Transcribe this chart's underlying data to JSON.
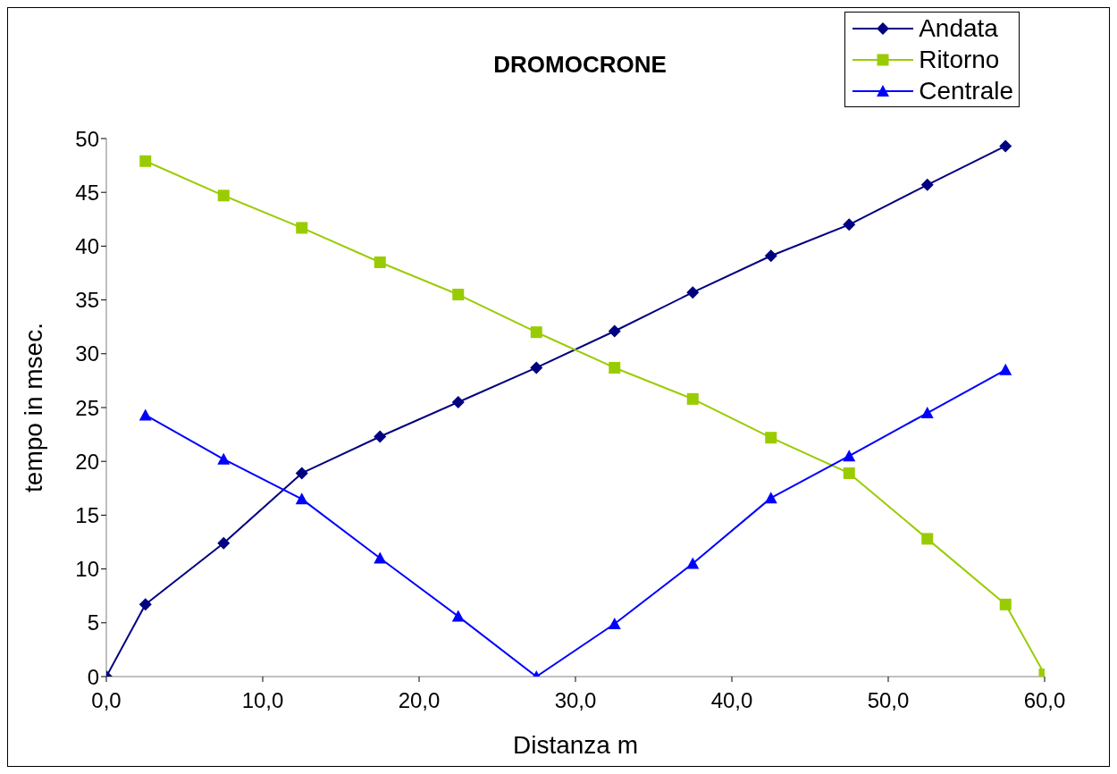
{
  "chart_data": {
    "type": "line",
    "title": "DROMOCRONE",
    "xlabel": "Distanza m",
    "ylabel": "tempo in msec.",
    "xlim": [
      0,
      60
    ],
    "xticks": [
      {
        "value": 0,
        "label": "0,0"
      },
      {
        "value": 10,
        "label": "10,0"
      },
      {
        "value": 20,
        "label": "20,0"
      },
      {
        "value": 30,
        "label": "30,0"
      },
      {
        "value": 40,
        "label": "40,0"
      },
      {
        "value": 50,
        "label": "50,0"
      },
      {
        "value": 60,
        "label": "60,0"
      }
    ],
    "ylim": [
      0,
      50
    ],
    "yticks": [
      0,
      5,
      10,
      15,
      20,
      25,
      30,
      35,
      40,
      45,
      50
    ],
    "grid": false,
    "legend": "top right",
    "line_style": "solid",
    "series": [
      {
        "name": "Andata",
        "color": "#000080",
        "marker": "diamond",
        "x": [
          0,
          2.5,
          7.5,
          12.5,
          17.5,
          22.5,
          27.5,
          32.5,
          37.5,
          42.5,
          47.5,
          52.5,
          57.5
        ],
        "values": [
          0,
          6.7,
          12.4,
          18.9,
          22.3,
          25.5,
          28.7,
          32.1,
          35.7,
          39.1,
          42.0,
          45.7,
          49.3
        ]
      },
      {
        "name": "Ritorno",
        "color": "#99cc00",
        "marker": "square",
        "x": [
          2.5,
          7.5,
          12.5,
          17.5,
          22.5,
          27.5,
          32.5,
          37.5,
          42.5,
          47.5,
          52.5,
          57.5,
          60
        ],
        "values": [
          47.9,
          44.7,
          41.7,
          38.5,
          35.5,
          32.0,
          28.7,
          25.8,
          22.2,
          18.9,
          12.8,
          6.7,
          0.2
        ]
      },
      {
        "name": "Centrale",
        "color": "#0000ff",
        "marker": "triangle",
        "x": [
          2.5,
          7.5,
          12.5,
          17.5,
          22.5,
          27.5,
          32.5,
          37.5,
          42.5,
          47.5,
          52.5,
          57.5
        ],
        "values": [
          24.3,
          20.2,
          16.5,
          11.0,
          5.6,
          0,
          4.9,
          10.5,
          16.6,
          20.5,
          24.5,
          28.5
        ]
      }
    ]
  }
}
